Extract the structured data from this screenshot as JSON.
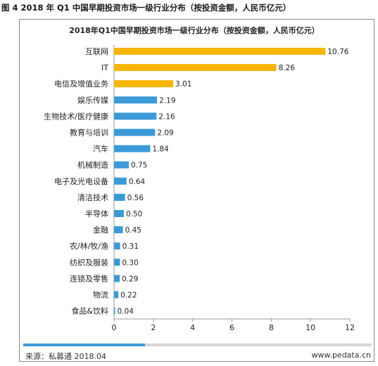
{
  "figure_caption": "图 4 2018 年 Q1 中国早期投资市场一级行业分布（按投资金额，人民币亿元）",
  "footer": {
    "source": "来源：私募通 2018.04",
    "url": "www.pedata.cn",
    "accent_color": "#3a9ad9",
    "bar_fill_fraction": 0.35
  },
  "colors": {
    "highlight": "#f7b500",
    "normal": "#3a9ad9"
  },
  "chart_data": {
    "type": "bar",
    "orientation": "horizontal",
    "title": "2018年Q1中国早期投资市场一级行业分布（按投资金额，人民币亿元）",
    "categories": [
      "互联网",
      "IT",
      "电信及增值业务",
      "娱乐传媒",
      "生物技术/医疗健康",
      "教育与培训",
      "汽车",
      "机械制造",
      "电子及光电设备",
      "清洁技术",
      "半导体",
      "金融",
      "农/林/牧/渔",
      "纺织及服装",
      "连锁及零售",
      "物流",
      "食品&饮料"
    ],
    "values": [
      10.76,
      8.26,
      3.01,
      2.19,
      2.16,
      2.09,
      1.84,
      0.75,
      0.64,
      0.56,
      0.5,
      0.45,
      0.31,
      0.3,
      0.29,
      0.22,
      0.04
    ],
    "value_labels": [
      "10.76",
      "8.26",
      "3.01",
      "2.19",
      "2.16",
      "2.09",
      "1.84",
      "0.75",
      "0.64",
      "0.56",
      "0.50",
      "0.45",
      "0.31",
      "0.30",
      "0.29",
      "0.22",
      "0.04"
    ],
    "highlighted": [
      "互联网",
      "IT",
      "电信及增值业务"
    ],
    "xlim": [
      0,
      12
    ],
    "xticks": [
      0,
      2,
      4,
      6,
      8,
      10,
      12
    ],
    "xtick_labels": [
      "0",
      "2",
      "4",
      "6",
      "8",
      "10",
      "12"
    ],
    "xlabel": "",
    "ylabel": "",
    "grid": false,
    "legend": "none"
  }
}
